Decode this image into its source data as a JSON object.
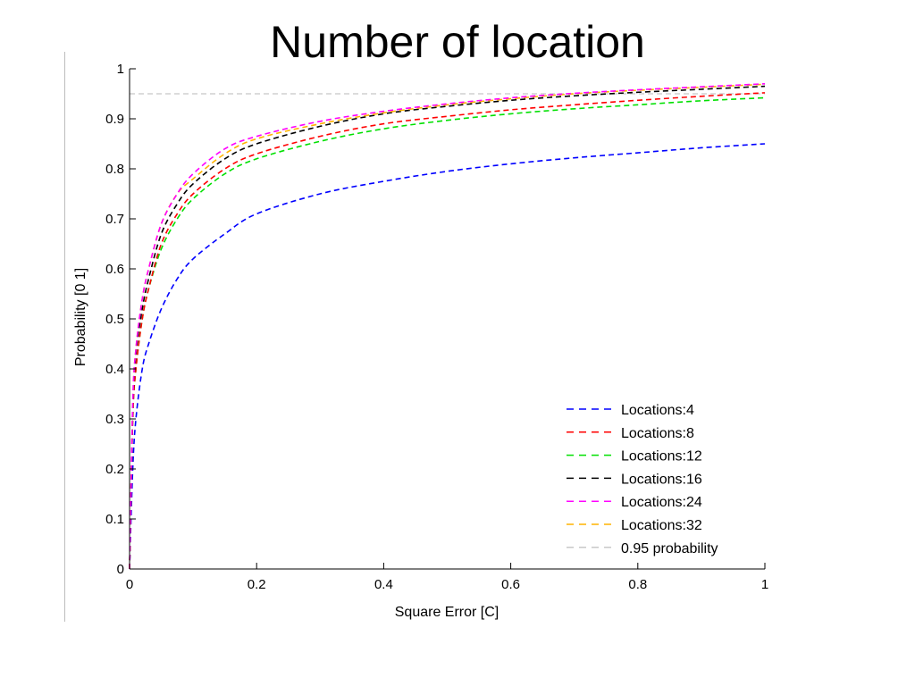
{
  "slide": {
    "title": "Number of location"
  },
  "chart_data": {
    "type": "line",
    "title": "",
    "xlabel": "Square Error [C]",
    "ylabel": "Probability [0 1]",
    "xlim": [
      0,
      1
    ],
    "ylim": [
      0,
      1
    ],
    "xticks": [
      "0",
      "0.2",
      "0.4",
      "0.6",
      "0.8",
      "1"
    ],
    "yticks": [
      "0",
      "0.1",
      "0.2",
      "0.3",
      "0.4",
      "0.5",
      "0.6",
      "0.7",
      "0.8",
      "0.9",
      "1"
    ],
    "grid": false,
    "legend_position": "bottom-right",
    "line_style": "dashed",
    "x": [
      0,
      0.005,
      0.01,
      0.02,
      0.03,
      0.05,
      0.075,
      0.1,
      0.15,
      0.2,
      0.3,
      0.4,
      0.5,
      0.6,
      0.7,
      0.8,
      0.9,
      1.0
    ],
    "series": [
      {
        "name": "Locations:4",
        "color": "#0000ff",
        "values": [
          0,
          0.2,
          0.3,
          0.4,
          0.45,
          0.52,
          0.58,
          0.62,
          0.67,
          0.71,
          0.75,
          0.775,
          0.795,
          0.81,
          0.822,
          0.832,
          0.842,
          0.85
        ]
      },
      {
        "name": "Locations:8",
        "color": "#ff0000",
        "values": [
          0,
          0.3,
          0.4,
          0.5,
          0.56,
          0.65,
          0.71,
          0.75,
          0.8,
          0.83,
          0.865,
          0.89,
          0.905,
          0.918,
          0.928,
          0.937,
          0.945,
          0.952
        ]
      },
      {
        "name": "Locations:12",
        "color": "#00e000",
        "values": [
          0,
          0.3,
          0.4,
          0.5,
          0.56,
          0.64,
          0.7,
          0.74,
          0.79,
          0.82,
          0.855,
          0.88,
          0.897,
          0.91,
          0.92,
          0.928,
          0.936,
          0.942
        ]
      },
      {
        "name": "Locations:16",
        "color": "#000000",
        "values": [
          0,
          0.32,
          0.43,
          0.52,
          0.58,
          0.67,
          0.73,
          0.77,
          0.82,
          0.85,
          0.885,
          0.91,
          0.925,
          0.937,
          0.946,
          0.953,
          0.959,
          0.965
        ]
      },
      {
        "name": "Locations:24",
        "color": "#ff00ff",
        "values": [
          0,
          0.33,
          0.44,
          0.54,
          0.6,
          0.69,
          0.75,
          0.79,
          0.84,
          0.865,
          0.895,
          0.915,
          0.93,
          0.942,
          0.951,
          0.958,
          0.964,
          0.97
        ]
      },
      {
        "name": "Locations:32",
        "color": "#ffb300",
        "values": [
          0,
          0.33,
          0.44,
          0.54,
          0.6,
          0.69,
          0.75,
          0.78,
          0.83,
          0.86,
          0.89,
          0.912,
          0.928,
          0.94,
          0.95,
          0.957,
          0.963,
          0.969
        ]
      },
      {
        "name": "0.95 probability",
        "color": "#c8c8c8",
        "values": [
          0.95,
          0.95,
          0.95,
          0.95,
          0.95,
          0.95,
          0.95,
          0.95,
          0.95,
          0.95,
          0.95,
          0.95,
          0.95,
          0.95,
          0.95,
          0.95,
          0.95,
          0.95
        ]
      }
    ]
  }
}
